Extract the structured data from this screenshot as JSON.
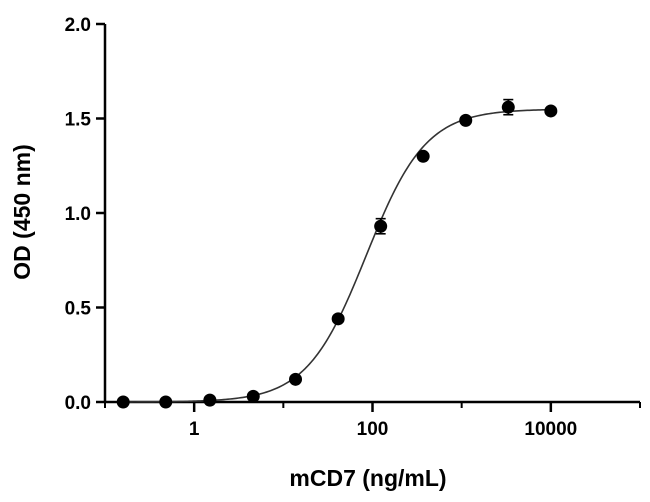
{
  "chart_data": {
    "type": "scatter",
    "xlabel": "mCD7 (ng/mL)",
    "ylabel": "OD (450 nm)",
    "x_scale": "log",
    "xlim": [
      0.1,
      100000
    ],
    "ylim": [
      0,
      2.0
    ],
    "x_ticks": [
      1,
      100,
      10000
    ],
    "x_tick_labels": [
      "1",
      "100",
      "10000"
    ],
    "y_ticks": [
      0.0,
      0.5,
      1.0,
      1.5,
      2.0
    ],
    "y_tick_labels": [
      "0.0",
      "0.5",
      "1.0",
      "1.5",
      "2.0"
    ],
    "grid": false,
    "series": [
      {
        "x": [
          0.16,
          0.48,
          1.5,
          4.6,
          13.7,
          41.2,
          123.5,
          370,
          1111,
          3333,
          10000
        ],
        "y": [
          0.0,
          0.0,
          0.01,
          0.03,
          0.12,
          0.44,
          0.93,
          1.3,
          1.49,
          1.56,
          1.54
        ],
        "err": [
          0,
          0,
          0,
          0,
          0,
          0,
          0.04,
          0,
          0,
          0.04,
          0
        ]
      }
    ],
    "fit": {
      "model": "4PL",
      "bottom": 0.0,
      "top": 1.55,
      "ec50": 85,
      "hill": 1.3
    }
  }
}
